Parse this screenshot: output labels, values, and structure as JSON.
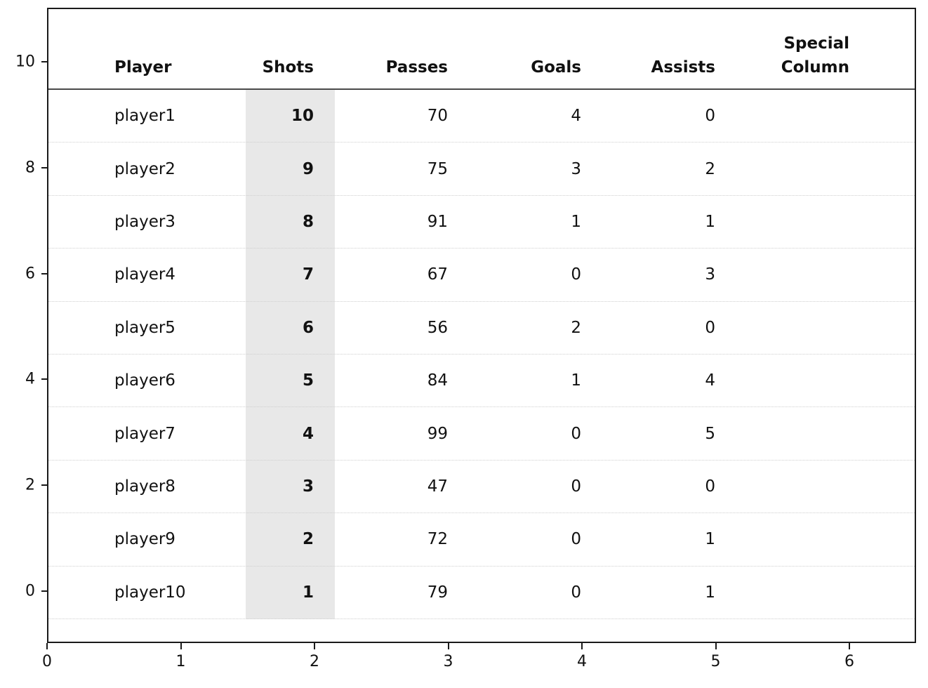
{
  "chart_data": {
    "type": "table",
    "title": "",
    "columns": [
      "Player",
      "Shots",
      "Passes",
      "Goals",
      "Assists",
      "Special Column"
    ],
    "rows": [
      {
        "player": "player1",
        "shots": "10",
        "passes": "70",
        "goals": "4",
        "assists": "0",
        "special": ""
      },
      {
        "player": "player2",
        "shots": "9",
        "passes": "75",
        "goals": "3",
        "assists": "2",
        "special": ""
      },
      {
        "player": "player3",
        "shots": "8",
        "passes": "91",
        "goals": "1",
        "assists": "1",
        "special": ""
      },
      {
        "player": "player4",
        "shots": "7",
        "passes": "67",
        "goals": "0",
        "assists": "3",
        "special": ""
      },
      {
        "player": "player5",
        "shots": "6",
        "passes": "56",
        "goals": "2",
        "assists": "0",
        "special": ""
      },
      {
        "player": "player6",
        "shots": "5",
        "passes": "84",
        "goals": "1",
        "assists": "4",
        "special": ""
      },
      {
        "player": "player7",
        "shots": "4",
        "passes": "99",
        "goals": "0",
        "assists": "5",
        "special": ""
      },
      {
        "player": "player8",
        "shots": "3",
        "passes": "47",
        "goals": "0",
        "assists": "0",
        "special": ""
      },
      {
        "player": "player9",
        "shots": "2",
        "passes": "72",
        "goals": "0",
        "assists": "1",
        "special": ""
      },
      {
        "player": "player10",
        "shots": "1",
        "passes": "79",
        "goals": "0",
        "assists": "1",
        "special": ""
      }
    ],
    "highlight": {
      "column": "Shots",
      "color": "#e8e8e8",
      "values_bold": true
    },
    "axes": {
      "x_ticks": [
        "0",
        "1",
        "2",
        "3",
        "4",
        "5",
        "6"
      ],
      "y_ticks": [
        "10",
        "8",
        "6",
        "4",
        "2",
        "0"
      ],
      "xlim": [
        0,
        6.5
      ],
      "ylim": [
        -1,
        11
      ],
      "grid": "horizontal dotted row separators",
      "legend": "none"
    }
  },
  "header": {
    "player": "Player",
    "shots": "Shots",
    "passes": "Passes",
    "goals": "Goals",
    "assists": "Assists",
    "special_line1": "Special",
    "special_line2": "Column"
  },
  "colors": {
    "band": "#e8e8e8",
    "row_separator": "#cfcfcf",
    "header_line": "#4a4a4a",
    "spine": "#1a1a1a",
    "text": "#111111"
  }
}
